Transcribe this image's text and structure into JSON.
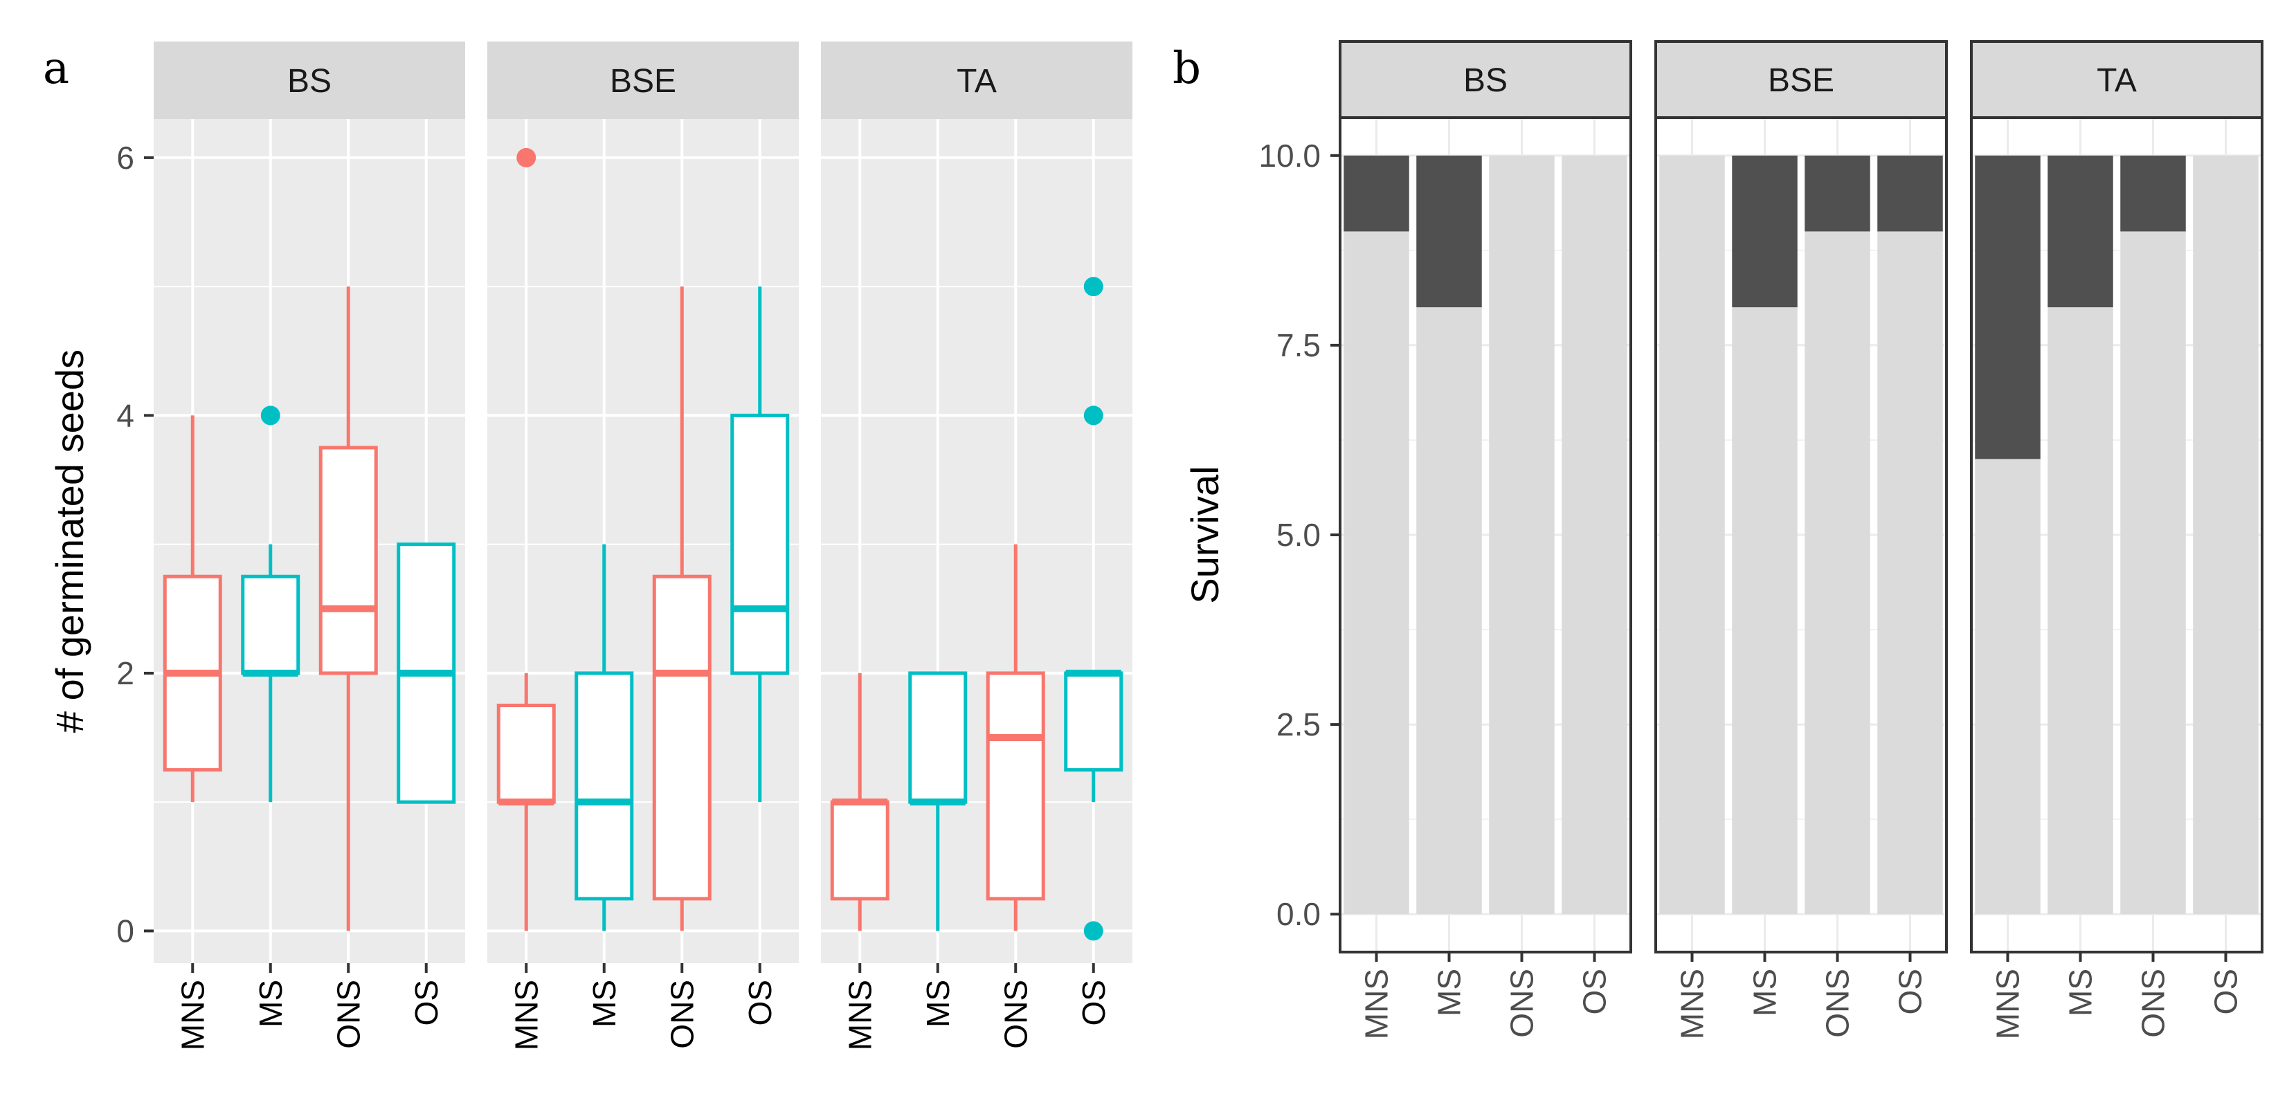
{
  "panel_labels": {
    "a": "a",
    "b": "b"
  },
  "chart_data": [
    {
      "type": "boxplot",
      "panel": "a",
      "ylabel": "# of germinated seeds",
      "xlabel": "",
      "ylim": [
        -0.25,
        6.3
      ],
      "yticks": [
        0,
        2,
        4,
        6
      ],
      "ytick_labels": [
        "0",
        "2",
        "4",
        "6"
      ],
      "categories": [
        "MNS",
        "MS",
        "ONS",
        "OS"
      ],
      "colors": {
        "MNS": "#F8766D",
        "ONS": "#F8766D",
        "MS": "#00BFC4",
        "OS": "#00BFC4"
      },
      "facets": [
        {
          "label": "BS",
          "boxes": [
            {
              "category": "MNS",
              "min": 1,
              "q1": 1.25,
              "median": 2,
              "q3": 2.75,
              "max": 4,
              "outliers": []
            },
            {
              "category": "MS",
              "min": 1,
              "q1": 2,
              "median": 2,
              "q3": 2.75,
              "max": 3,
              "outliers": [
                4
              ]
            },
            {
              "category": "ONS",
              "min": 0,
              "q1": 2,
              "median": 2.5,
              "q3": 3.75,
              "max": 5,
              "outliers": []
            },
            {
              "category": "OS",
              "min": 1,
              "q1": 1,
              "median": 2,
              "q3": 3,
              "max": 3,
              "outliers": []
            }
          ]
        },
        {
          "label": "BSE",
          "boxes": [
            {
              "category": "MNS",
              "min": 0,
              "q1": 1,
              "median": 1,
              "q3": 1.75,
              "max": 2,
              "outliers": [
                6
              ]
            },
            {
              "category": "MS",
              "min": 0,
              "q1": 0.25,
              "median": 1,
              "q3": 2,
              "max": 3,
              "outliers": []
            },
            {
              "category": "ONS",
              "min": 0,
              "q1": 0.25,
              "median": 2,
              "q3": 2.75,
              "max": 5,
              "outliers": []
            },
            {
              "category": "OS",
              "min": 1,
              "q1": 2,
              "median": 2.5,
              "q3": 4,
              "max": 5,
              "outliers": []
            }
          ]
        },
        {
          "label": "TA",
          "boxes": [
            {
              "category": "MNS",
              "min": 0,
              "q1": 0.25,
              "median": 1,
              "q3": 1,
              "max": 2,
              "outliers": []
            },
            {
              "category": "MS",
              "min": 0,
              "q1": 1,
              "median": 1,
              "q3": 2,
              "max": 2,
              "outliers": []
            },
            {
              "category": "ONS",
              "min": 0,
              "q1": 0.25,
              "median": 1.5,
              "q3": 2,
              "max": 3,
              "outliers": []
            },
            {
              "category": "OS",
              "min": 1,
              "q1": 1.25,
              "median": 2,
              "q3": 2,
              "max": 2,
              "outliers": [
                0,
                4,
                5
              ]
            }
          ]
        }
      ]
    },
    {
      "type": "bar",
      "stacked": true,
      "panel": "b",
      "ylabel": "Survival",
      "xlabel": "",
      "ylim": [
        -0.5,
        10.5
      ],
      "yticks": [
        0,
        2.5,
        5,
        7.5,
        10
      ],
      "ytick_labels": [
        "0.0",
        "2.5",
        "5.0",
        "7.5",
        "10.0"
      ],
      "categories": [
        "MNS",
        "MS",
        "ONS",
        "OS"
      ],
      "series_colors": {
        "survived": "#DBDBDB",
        "died": "#505050"
      },
      "total": 10,
      "facets": [
        {
          "label": "BS",
          "survived": [
            9,
            8,
            10,
            10
          ]
        },
        {
          "label": "BSE",
          "survived": [
            10,
            8,
            9,
            9
          ]
        },
        {
          "label": "TA",
          "survived": [
            6,
            8,
            9,
            10
          ]
        }
      ]
    }
  ]
}
